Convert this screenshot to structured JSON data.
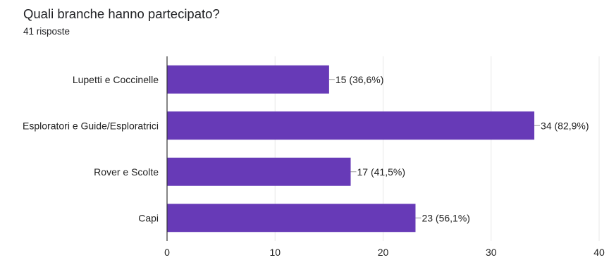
{
  "header": {
    "title": "Quali branche hanno partecipato?",
    "responses": "41 risposte"
  },
  "colors": {
    "bar": "#673ab7",
    "grid": "#e8e8e8",
    "axis": "#333333",
    "leader": "#999999"
  },
  "chart_data": {
    "type": "bar",
    "orientation": "horizontal",
    "categories": [
      "Lupetti e Coccinelle",
      "Esploratori e Guide/Esploratrici",
      "Rover e Scolte",
      "Capi"
    ],
    "values": [
      15,
      34,
      17,
      23
    ],
    "data_labels": [
      "15 (36,6%)",
      "34 (82,9%)",
      "17 (41,5%)",
      "23 (56,1%)"
    ],
    "xlim": [
      0,
      40
    ],
    "xticks": [
      0,
      10,
      20,
      30,
      40
    ],
    "grid": true
  }
}
